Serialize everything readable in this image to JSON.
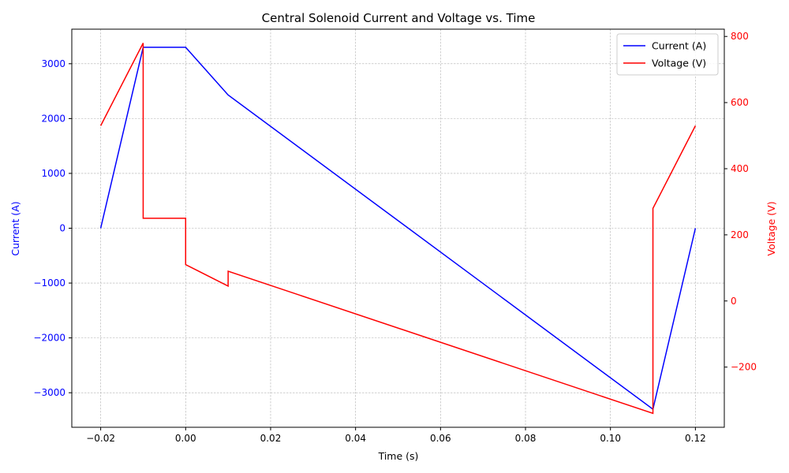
{
  "chart_data": {
    "type": "line",
    "title": "Central Solenoid Current and Voltage vs. Time",
    "xlabel": "Time (s)",
    "ylabel_left": "Current (A)",
    "ylabel_right": "Voltage (V)",
    "xlim": [
      -0.0268,
      0.1268
    ],
    "ylim_left": [
      -3630,
      3630
    ],
    "ylim_right": [
      -382,
      822
    ],
    "x_ticks": [
      -0.02,
      0.0,
      0.02,
      0.04,
      0.06,
      0.08,
      0.1,
      0.12
    ],
    "x_tick_labels": [
      "−0.02",
      "0.00",
      "0.02",
      "0.04",
      "0.06",
      "0.08",
      "0.10",
      "0.12"
    ],
    "y_ticks_left": [
      -3000,
      -2000,
      -1000,
      0,
      1000,
      2000,
      3000
    ],
    "y_tick_labels_left": [
      "−3000",
      "−2000",
      "−1000",
      "0",
      "1000",
      "2000",
      "3000"
    ],
    "y_ticks_right": [
      -200,
      0,
      200,
      400,
      600,
      800
    ],
    "y_tick_labels_right": [
      "−200",
      "0",
      "200",
      "400",
      "600",
      "800"
    ],
    "grid": true,
    "legend_position": "top-right",
    "series": [
      {
        "name": "Current (A)",
        "axis": "left",
        "color": "#0000ff",
        "x": [
          -0.02,
          -0.01,
          0.0,
          0.01,
          0.11,
          0.12
        ],
        "y": [
          0,
          3300,
          3300,
          2430,
          -3300,
          0
        ]
      },
      {
        "name": "Voltage (V)",
        "axis": "right",
        "color": "#ff0000",
        "x": [
          -0.02,
          -0.01,
          -0.01,
          0.0,
          0.0,
          0.01,
          0.01,
          0.11,
          0.11,
          0.12
        ],
        "y": [
          530,
          780,
          250,
          250,
          110,
          45,
          90,
          -340,
          280,
          530
        ]
      }
    ]
  }
}
